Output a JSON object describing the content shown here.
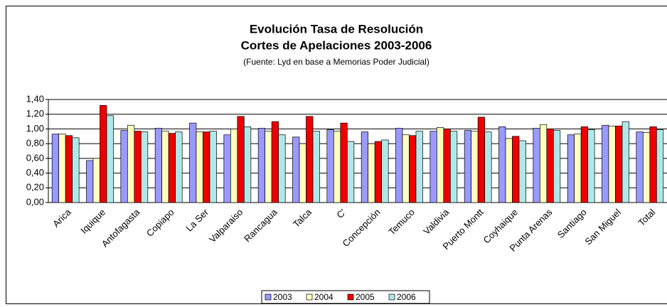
{
  "chart_data": {
    "type": "bar",
    "title": "Evolución Tasa de Resolución",
    "subtitle": "Cortes de Apelaciones 2003-2006",
    "source": "(Fuente: Lyd en base a Memorias Poder Judicial)",
    "categories": [
      "Arica",
      "Iquique",
      "Antofagasta",
      "Copiapo",
      "La Ser",
      "Valparaiso",
      "Rancagua",
      "Talca",
      "C'",
      "Concepción",
      "Temuco",
      "Valdivia",
      "Puerto Montt",
      "Coyhaique",
      "Punta Arenas",
      "Santiago",
      "San Miguel",
      "Total"
    ],
    "series": [
      {
        "name": "2003",
        "color": "#9999ff",
        "values": [
          0.93,
          0.57,
          0.98,
          1.01,
          1.08,
          0.92,
          1.01,
          0.89,
          0.99,
          0.96,
          1.01,
          0.97,
          0.98,
          1.03,
          1.01,
          0.92,
          1.05,
          0.96
        ]
      },
      {
        "name": "2004",
        "color": "#ffffc0",
        "values": [
          0.93,
          0.6,
          1.05,
          0.97,
          0.96,
          1.0,
          0.97,
          0.8,
          0.97,
          0.8,
          0.92,
          1.02,
          0.97,
          0.87,
          1.06,
          0.93,
          1.04,
          0.95
        ]
      },
      {
        "name": "2005",
        "color": "#ee0000",
        "values": [
          0.91,
          1.32,
          0.97,
          0.94,
          0.96,
          1.17,
          1.1,
          1.17,
          1.08,
          0.83,
          0.91,
          1.0,
          1.16,
          0.9,
          1.0,
          1.03,
          1.04,
          1.03
        ]
      },
      {
        "name": "2006",
        "color": "#b0e8e8",
        "values": [
          0.88,
          1.18,
          0.96,
          0.96,
          0.97,
          1.03,
          0.92,
          0.97,
          0.83,
          0.85,
          0.97,
          0.97,
          0.96,
          0.84,
          0.98,
          0.99,
          1.1,
          0.99
        ]
      }
    ],
    "ylim": [
      0,
      1.4
    ],
    "yticks": [
      {
        "value": 0,
        "label": "0,00"
      },
      {
        "value": 0.2,
        "label": "0,20"
      },
      {
        "value": 0.4,
        "label": "0,40"
      },
      {
        "value": 0.6,
        "label": "0,60"
      },
      {
        "value": 0.8,
        "label": "0,80"
      },
      {
        "value": 1.0,
        "label": "1,00"
      },
      {
        "value": 1.2,
        "label": "1,20"
      },
      {
        "value": 1.4,
        "label": "1,40"
      }
    ],
    "grid": true
  }
}
